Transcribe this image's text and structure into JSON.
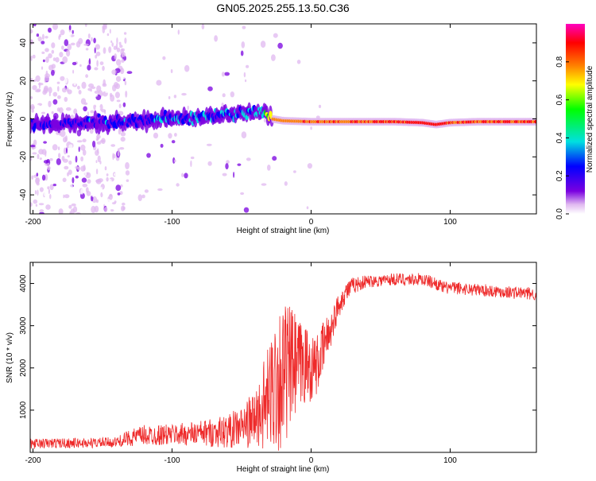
{
  "figure_title": "GN05.2025.255.13.50.C36",
  "chart_data": [
    {
      "type": "heatmap",
      "title": "GN05.2025.255.13.50.C36",
      "xlabel": "Height of straight line (km)",
      "ylabel": "Frequency (Hz)",
      "xlim": [
        -202,
        162
      ],
      "ylim": [
        -50,
        50
      ],
      "xticks": [
        -200,
        -100,
        0,
        100
      ],
      "xtick_labels": [
        "-200",
        "-100",
        "0",
        "100"
      ],
      "yticks": [
        -40,
        -20,
        0,
        20,
        40
      ],
      "ytick_labels": [
        "-40",
        "-20",
        "0",
        "20",
        "40"
      ],
      "colorbar": {
        "label": "Normalized spectral amplitude",
        "range": [
          0,
          1
        ],
        "ticks": [
          0,
          0.2,
          0.4,
          0.6,
          0.8
        ],
        "tick_labels": [
          "0.0",
          "0.2",
          "0.4",
          "0.6",
          "0.8"
        ],
        "colors": [
          "#ffffff",
          "#e0b8f0",
          "#7a00e0",
          "#0000ff",
          "#00e0e0",
          "#00ff00",
          "#ffff00",
          "#ff8000",
          "#ff0000",
          "#ff00c0"
        ]
      },
      "ridge": {
        "x": [
          -200,
          -175,
          -150,
          -125,
          -100,
          -75,
          -50,
          -35,
          -28,
          -20,
          0,
          20,
          40,
          60,
          80,
          90,
          100,
          120,
          140,
          162
        ],
        "frequency": [
          -3,
          -2.5,
          -2,
          -1,
          0,
          1.5,
          3,
          4,
          0,
          -1,
          -1.5,
          -1.5,
          -1.5,
          -1.5,
          -2,
          -3,
          -2,
          -1.5,
          -1.5,
          -1.5
        ],
        "amplitude": [
          0.25,
          0.25,
          0.3,
          0.3,
          0.35,
          0.35,
          0.4,
          0.45,
          0.8,
          0.85,
          0.9,
          0.9,
          0.9,
          0.9,
          0.95,
          0.95,
          0.9,
          0.9,
          0.9,
          0.9
        ]
      }
    },
    {
      "type": "line",
      "xlabel": "Height of straight line (km)",
      "ylabel": "SNR (10 * v/v)",
      "xlim": [
        -202,
        162
      ],
      "ylim": [
        0,
        4500
      ],
      "xticks": [
        -200,
        -100,
        0,
        100
      ],
      "xtick_labels": [
        "-200",
        "-100",
        "0",
        "100"
      ],
      "yticks": [
        1000,
        2000,
        3000,
        4000
      ],
      "ytick_labels": [
        "1000",
        "2000",
        "3000",
        "4000"
      ],
      "color": "#ee2a2a",
      "envelope": {
        "x": [
          -202,
          -180,
          -160,
          -140,
          -130,
          -120,
          -100,
          -80,
          -60,
          -50,
          -40,
          -30,
          -25,
          -20,
          -15,
          -10,
          -5,
          0,
          5,
          10,
          15,
          20,
          25,
          30,
          40,
          60,
          80,
          90,
          95,
          100,
          120,
          140,
          162
        ],
        "mean": [
          200,
          220,
          220,
          240,
          350,
          400,
          420,
          450,
          500,
          600,
          800,
          1300,
          1800,
          1800,
          2000,
          2000,
          2100,
          2000,
          2100,
          2600,
          3000,
          3500,
          3800,
          3950,
          4050,
          4100,
          4100,
          4000,
          3900,
          3900,
          3850,
          3800,
          3750
        ],
        "noise": [
          120,
          120,
          120,
          120,
          200,
          250,
          250,
          300,
          400,
          500,
          700,
          1300,
          1800,
          1800,
          1500,
          1200,
          1000,
          800,
          700,
          600,
          400,
          300,
          250,
          200,
          150,
          150,
          150,
          150,
          150,
          150,
          150,
          150,
          150
        ]
      }
    }
  ]
}
